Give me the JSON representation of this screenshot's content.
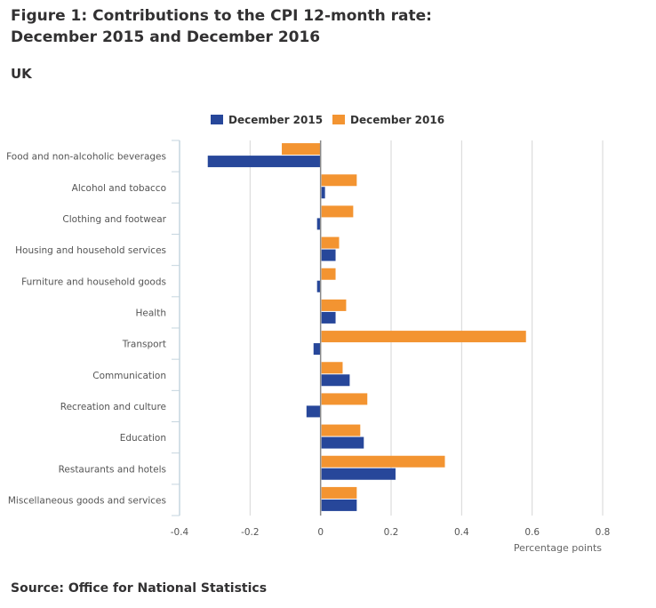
{
  "title_line1": "Figure 1: Contributions to the CPI 12-month rate:",
  "title_line2": "December 2015 and December 2016",
  "subtitle": "UK",
  "source": "Source: Office for National Statistics",
  "chart_data": {
    "type": "bar",
    "orientation": "horizontal",
    "title": "Figure 1: Contributions to the CPI 12-month rate: December 2015 and December 2016",
    "subtitle": "UK",
    "xlabel": "Percentage points",
    "ylabel": "",
    "xlim": [
      -0.4,
      0.8
    ],
    "xticks": [
      -0.4,
      -0.2,
      0,
      0.2,
      0.4,
      0.6,
      0.8
    ],
    "xtick_labels": [
      "-0.4",
      "-0.2",
      "0",
      "0.2",
      "0.4",
      "0.6",
      "0.8"
    ],
    "grid": true,
    "legend_position": "top",
    "categories": [
      "Food and non-alcoholic beverages",
      "Alcohol and tobacco",
      "Clothing and footwear",
      "Housing and household services",
      "Furniture and household goods",
      "Health",
      "Transport",
      "Communication",
      "Recreation and culture",
      "Education",
      "Restaurants and hotels",
      "Miscellaneous goods and services"
    ],
    "series": [
      {
        "name": "December 2015",
        "color": "#27479a",
        "values": [
          -0.32,
          0.01,
          -0.01,
          0.04,
          -0.01,
          0.04,
          -0.02,
          0.08,
          -0.04,
          0.12,
          0.21,
          0.1
        ]
      },
      {
        "name": "December 2016",
        "color": "#f39431",
        "values": [
          -0.11,
          0.1,
          0.09,
          0.05,
          0.04,
          0.07,
          0.58,
          0.06,
          0.13,
          0.11,
          0.35,
          0.1
        ]
      }
    ]
  }
}
